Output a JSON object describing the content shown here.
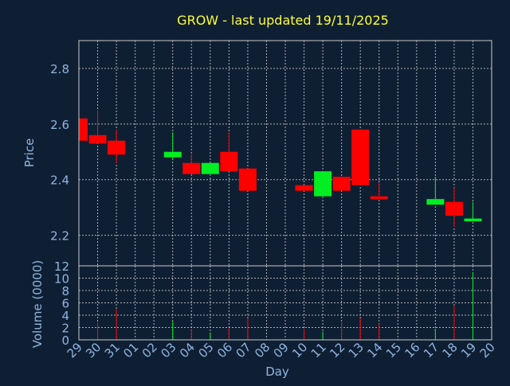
{
  "chart_data": {
    "type": "candlestick",
    "title": "GROW - last updated 19/11/2025",
    "xlabel": "Day",
    "price_panel": {
      "ylabel": "Price",
      "ylim": [
        2.09,
        2.9
      ],
      "yticks": [
        "2.2",
        "2.4",
        "2.6",
        "2.8"
      ],
      "ytick_values": [
        2.2,
        2.4,
        2.6,
        2.8
      ]
    },
    "volume_panel": {
      "ylabel": "Volume (0000)",
      "ylim": [
        0,
        12
      ],
      "yticks": [
        "0",
        "2",
        "4",
        "6",
        "8",
        "10",
        "12"
      ],
      "ytick_values": [
        0,
        2,
        4,
        6,
        8,
        10,
        12
      ]
    },
    "x_ticks": [
      "29",
      "30",
      "31",
      "01",
      "02",
      "03",
      "04",
      "05",
      "06",
      "07",
      "08",
      "09",
      "10",
      "11",
      "12",
      "13",
      "14",
      "15",
      "16",
      "17",
      "18",
      "19",
      "20"
    ],
    "candles": [
      {
        "day": "29",
        "open": 2.62,
        "high": 2.62,
        "low": 2.54,
        "close": 2.54,
        "volume": 0
      },
      {
        "day": "30",
        "open": 2.56,
        "high": 2.65,
        "low": 2.53,
        "close": 2.53,
        "volume": 2.8
      },
      {
        "day": "31",
        "open": 2.54,
        "high": 2.58,
        "low": 2.46,
        "close": 2.49,
        "volume": 5.0
      },
      {
        "day": "03",
        "open": 2.48,
        "high": 2.57,
        "low": 2.47,
        "close": 2.5,
        "volume": 3.0
      },
      {
        "day": "04",
        "open": 2.46,
        "high": 2.49,
        "low": 2.42,
        "close": 2.42,
        "volume": 1.8
      },
      {
        "day": "05",
        "open": 2.42,
        "high": 2.46,
        "low": 2.42,
        "close": 2.46,
        "volume": 1.2
      },
      {
        "day": "06",
        "open": 2.5,
        "high": 2.57,
        "low": 2.43,
        "close": 2.43,
        "volume": 2.0
      },
      {
        "day": "07",
        "open": 2.44,
        "high": 2.44,
        "low": 2.36,
        "close": 2.36,
        "volume": 3.5
      },
      {
        "day": "10",
        "open": 2.38,
        "high": 2.38,
        "low": 2.36,
        "close": 2.36,
        "volume": 1.8
      },
      {
        "day": "11",
        "open": 2.34,
        "high": 2.43,
        "low": 2.34,
        "close": 2.43,
        "volume": 1.3
      },
      {
        "day": "12",
        "open": 2.41,
        "high": 2.41,
        "low": 2.36,
        "close": 2.36,
        "volume": 2.8
      },
      {
        "day": "13",
        "open": 2.58,
        "high": 2.58,
        "low": 2.38,
        "close": 2.38,
        "volume": 3.5
      },
      {
        "day": "14",
        "open": 2.34,
        "high": 2.39,
        "low": 2.33,
        "close": 2.33,
        "volume": 2.6
      },
      {
        "day": "17",
        "open": 2.31,
        "high": 2.41,
        "low": 2.31,
        "close": 2.33,
        "volume": 1.8
      },
      {
        "day": "18",
        "open": 2.32,
        "high": 2.37,
        "low": 2.23,
        "close": 2.27,
        "volume": 5.5
      },
      {
        "day": "19",
        "open": 2.25,
        "high": 2.32,
        "low": 2.25,
        "close": 2.26,
        "volume": 11.0
      }
    ],
    "grid": true,
    "colors": {
      "background": "#0f1f33",
      "title": "#ffff33",
      "axis_text": "#8fb4e0",
      "frame": "#c8c8c8",
      "grid": "#c8c8c8",
      "up": "#00ee22",
      "down": "#ff0000"
    }
  }
}
